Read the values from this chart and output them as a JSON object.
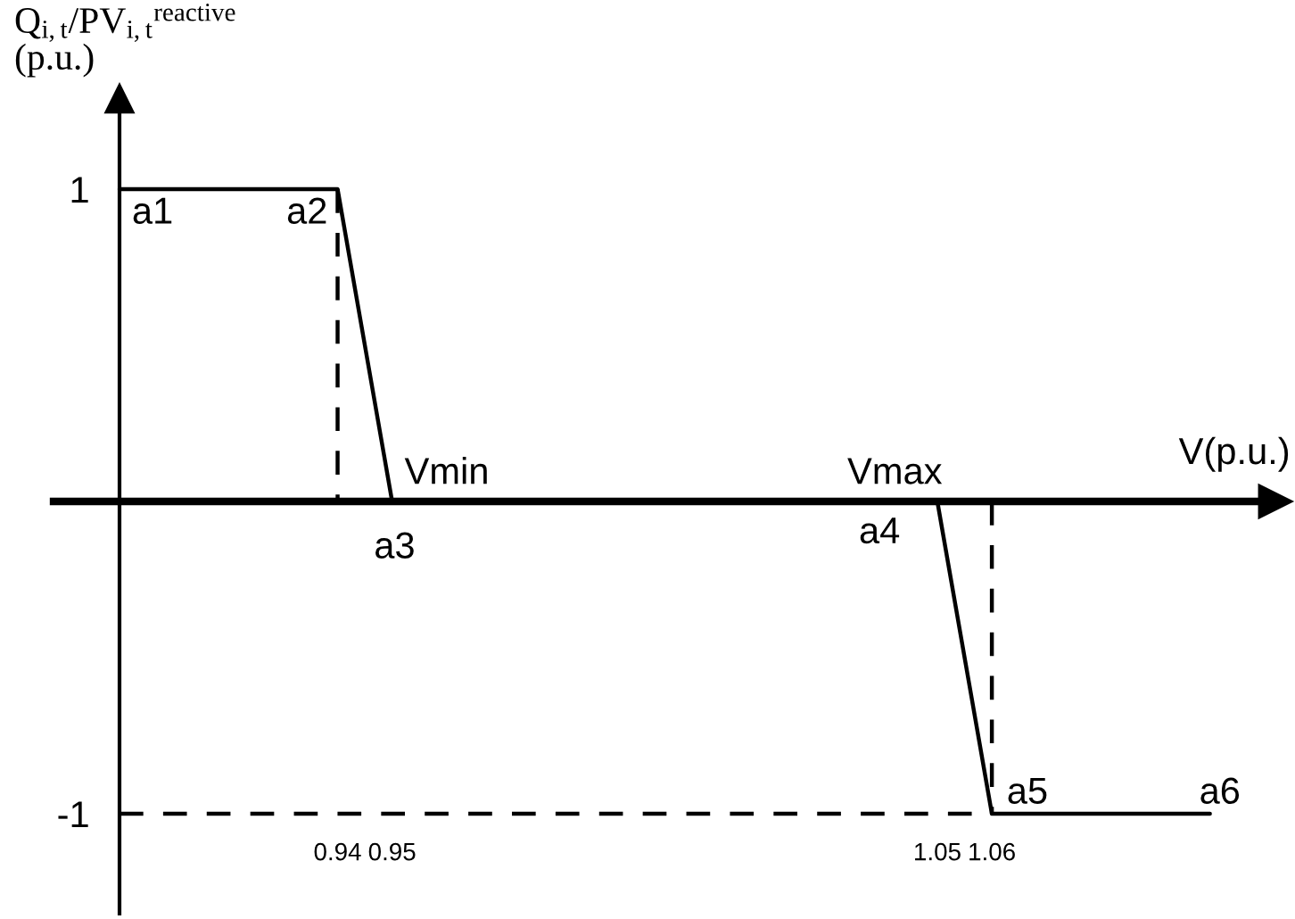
{
  "chart_data": {
    "type": "line",
    "xlabel": "V(p.u.)",
    "ylabel": "Q$_{i,t}$/PV$_{i,t}$$^{reactive}$\n(p.u.)",
    "xlim": [
      0.9,
      1.112
    ],
    "ylim": [
      -1.32,
      1.29
    ],
    "xticks": [
      0.94,
      0.95,
      1.05,
      1.06
    ],
    "yticks": [
      {
        "value": 1,
        "label": "1"
      },
      {
        "value": -1,
        "label": "-1"
      }
    ],
    "series": [
      {
        "color": "#000000",
        "x": [
          0.9,
          0.94,
          0.95,
          1.05,
          1.06,
          1.1
        ],
        "values": [
          1,
          1,
          0,
          0,
          -1,
          -1
        ]
      },
      {
        "color": "#000000",
        "line_style": "dashed",
        "x": [
          0.94,
          0.94
        ],
        "values": [
          1,
          0
        ]
      },
      {
        "color": "#000000",
        "line_style": "dashed",
        "x": [
          1.06,
          1.06
        ],
        "values": [
          0,
          -1
        ]
      },
      {
        "color": "#000000",
        "line_style": "dashed",
        "x": [
          0.9,
          1.06
        ],
        "values": [
          -1,
          -1
        ]
      }
    ],
    "annotations": [
      {
        "text": "a1",
        "x": 0.9,
        "y": 1
      },
      {
        "text": "a2",
        "x": 0.94,
        "y": 1
      },
      {
        "text": "a3",
        "x": 0.95,
        "y": 0
      },
      {
        "text": "a4",
        "x": 1.05,
        "y": 0
      },
      {
        "text": "a5",
        "x": 1.06,
        "y": -1
      },
      {
        "text": "a6",
        "x": 1.1,
        "y": -1
      },
      {
        "text": "Vmin",
        "x": 0.95,
        "y": 0
      },
      {
        "text": "Vmax",
        "x": 1.05,
        "y": 0
      }
    ]
  }
}
